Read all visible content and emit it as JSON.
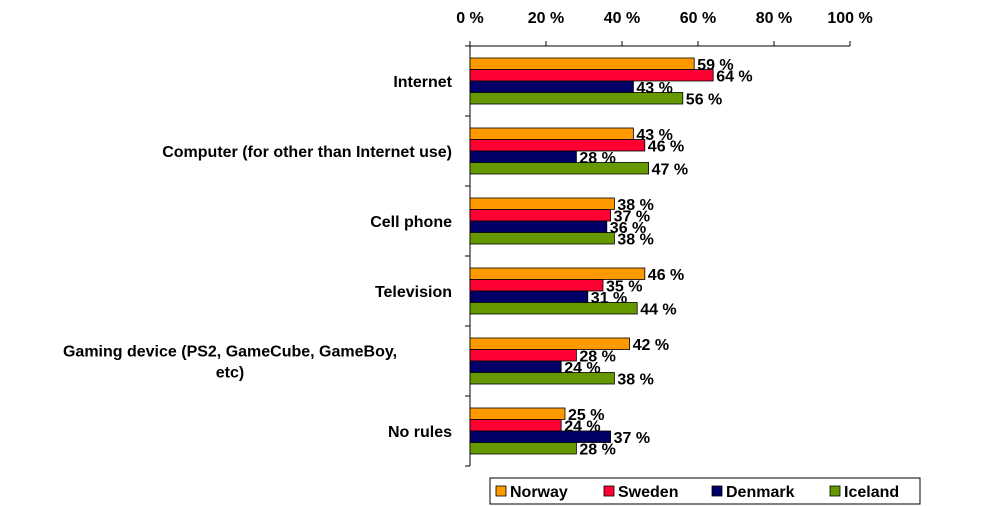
{
  "chart_data": {
    "type": "bar",
    "orientation": "horizontal",
    "categories": [
      "Internet",
      "Computer (for other than Internet use)",
      "Cell phone",
      "Television",
      "Gaming device (PS2, GameCube, GameBoy, etc)",
      "No rules"
    ],
    "category_lines": [
      [
        "Internet"
      ],
      [
        "Computer (for other than Internet use)"
      ],
      [
        "Cell phone"
      ],
      [
        "Television"
      ],
      [
        "Gaming device (PS2, GameCube, GameBoy,",
        "etc)"
      ],
      [
        "No rules"
      ]
    ],
    "series": [
      {
        "name": "Norway",
        "color": "#FF9900",
        "values": [
          59,
          43,
          38,
          46,
          42,
          25
        ],
        "labels": [
          "59 %",
          "43 %",
          "38 %",
          "46 %",
          "42 %",
          "25 %"
        ]
      },
      {
        "name": "Sweden",
        "color": "#FF0033",
        "values": [
          64,
          46,
          37,
          35,
          28,
          24
        ],
        "labels": [
          "64 %",
          "46 %",
          "37 %",
          "35 %",
          "28 %",
          "24 %"
        ]
      },
      {
        "name": "Denmark",
        "color": "#000066",
        "values": [
          43,
          28,
          36,
          31,
          24,
          37
        ],
        "labels": [
          "43 %",
          "28 %",
          "36 %",
          "31 %",
          "24 %",
          "37 %"
        ]
      },
      {
        "name": "Iceland",
        "color": "#669900",
        "values": [
          56,
          47,
          38,
          44,
          38,
          28
        ],
        "labels": [
          "56 %",
          "47 %",
          "38 %",
          "44 %",
          "38 %",
          "28 %"
        ]
      }
    ],
    "xlim": [
      0,
      100
    ],
    "xticks": [
      0,
      20,
      40,
      60,
      80,
      100
    ],
    "xtick_labels": [
      "0 %",
      "20 %",
      "40 %",
      "60 %",
      "80 %",
      "100 %"
    ],
    "x_axis_position": "top",
    "grid": false,
    "legend_position": "bottom"
  }
}
